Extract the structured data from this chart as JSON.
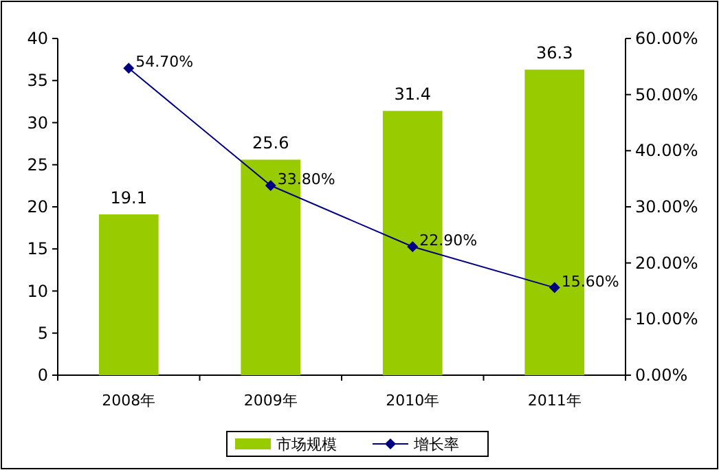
{
  "chart_data": {
    "type": "bar",
    "categories": [
      "2008年",
      "2009年",
      "2010年",
      "2011年"
    ],
    "series": [
      {
        "name": "市场规模",
        "color": "#99cc00",
        "values": [
          19.1,
          25.6,
          31.4,
          36.3
        ]
      },
      {
        "name": "增长率",
        "type": "line",
        "axis": "y2",
        "color": "#000080",
        "values": [
          54.7,
          33.8,
          22.9,
          15.6
        ],
        "value_labels": [
          "54.70%",
          "33.80%",
          "22.90%",
          "15.60%"
        ]
      }
    ],
    "ylim": [
      0,
      40
    ],
    "yticks": [
      0,
      5,
      10,
      15,
      20,
      25,
      30,
      35,
      40
    ],
    "y2lim": [
      0,
      60
    ],
    "y2ticks": [
      {
        "value": 0,
        "label": "0.00%"
      },
      {
        "value": 10,
        "label": "10.00%"
      },
      {
        "value": 20,
        "label": "20.00%"
      },
      {
        "value": 30,
        "label": "30.00%"
      },
      {
        "value": 40,
        "label": "40.00%"
      },
      {
        "value": 50,
        "label": "50.00%"
      },
      {
        "value": 60,
        "label": "60.00%"
      }
    ],
    "data_labels": true,
    "marker": "diamond",
    "legend": "bottom"
  }
}
